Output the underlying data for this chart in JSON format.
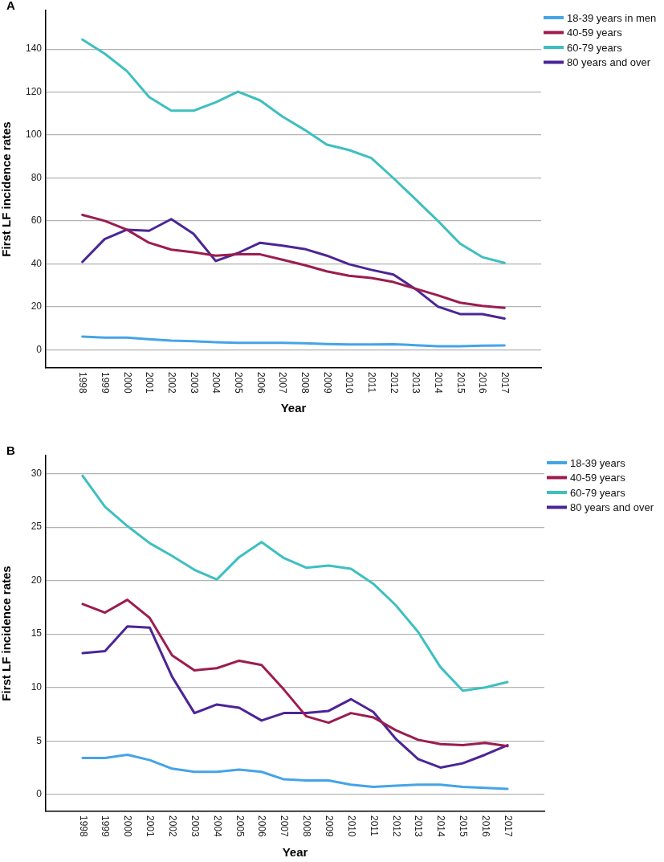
{
  "chart_data": [
    {
      "type": "line",
      "title": "A",
      "xlabel": "Year",
      "ylabel": "First LF incidence rates",
      "legend": "top right",
      "grid": "y",
      "x": [
        1998,
        1999,
        2000,
        2001,
        2002,
        2003,
        2004,
        2005,
        2006,
        2007,
        2008,
        2009,
        2010,
        2011,
        2012,
        2013,
        2014,
        2015,
        2016,
        2017
      ],
      "xlim": [
        1996.35,
        2018.65
      ],
      "xticks": [
        1998,
        1999,
        2000,
        2001,
        2002,
        2003,
        2004,
        2005,
        2006,
        2007,
        2008,
        2009,
        2010,
        2011,
        2012,
        2013,
        2014,
        2015,
        2016,
        2017
      ],
      "ylim": [
        -8.5,
        158
      ],
      "yticks": [
        0,
        20,
        40,
        60,
        80,
        100,
        120,
        140
      ],
      "series": [
        {
          "name": "18-39 years in men",
          "color": "#45a4e6",
          "values": [
            6.1,
            5.6,
            5.6,
            4.9,
            4.2,
            3.9,
            3.5,
            3.2,
            3.2,
            3.2,
            3.0,
            2.6,
            2.4,
            2.4,
            2.5,
            2.1,
            1.6,
            1.6,
            1.9,
            2.0
          ]
        },
        {
          "name": "40-59 years",
          "color": "#9c1c4f",
          "values": [
            62.8,
            60,
            55.9,
            49.8,
            46.6,
            45.4,
            43.8,
            44.4,
            44.4,
            41.9,
            39.4,
            36.5,
            34.4,
            33.4,
            31.5,
            28.4,
            25.3,
            21.9,
            20.4,
            19.5
          ]
        },
        {
          "name": "60-79 years",
          "color": "#3ebfc0",
          "values": [
            144.4,
            137.9,
            129.8,
            117.7,
            111.3,
            111.3,
            115.2,
            120.2,
            116.1,
            108.6,
            102.4,
            95.5,
            93.0,
            89.3,
            79.9,
            70.0,
            60.0,
            49.4,
            43.1,
            40.4
          ]
        },
        {
          "name": "80 years and over",
          "color": "#4b2596",
          "values": [
            40.9,
            51.5,
            55.9,
            55.4,
            60.8,
            54.0,
            41.3,
            45.0,
            49.8,
            48.5,
            46.9,
            43.8,
            39.8,
            37.2,
            35.0,
            28.2,
            20.1,
            16.6,
            16.6,
            14.5
          ]
        }
      ]
    },
    {
      "type": "line",
      "title": "B",
      "xlabel": "Year",
      "ylabel": "First LF incidence rates",
      "legend": "top right",
      "grid": "y",
      "x": [
        1998,
        1999,
        2000,
        2001,
        2002,
        2003,
        2004,
        2005,
        2006,
        2007,
        2008,
        2009,
        2010,
        2011,
        2012,
        2013,
        2014,
        2015,
        2016,
        2017
      ],
      "xlim": [
        1996.35,
        2018.65
      ],
      "xticks": [
        1998,
        1999,
        2000,
        2001,
        2002,
        2003,
        2004,
        2005,
        2006,
        2007,
        2008,
        2009,
        2010,
        2011,
        2012,
        2013,
        2014,
        2015,
        2016,
        2017
      ],
      "ylim": [
        -1.6,
        31.7
      ],
      "yticks": [
        0,
        5,
        10,
        15,
        20,
        25,
        30
      ],
      "series": [
        {
          "name": "18-39 years",
          "color": "#45a4e6",
          "values": [
            3.4,
            3.4,
            3.7,
            3.2,
            2.4,
            2.1,
            2.1,
            2.3,
            2.1,
            1.4,
            1.3,
            1.3,
            0.9,
            0.7,
            0.8,
            0.9,
            0.9,
            0.7,
            0.6,
            0.5
          ]
        },
        {
          "name": "40-59 years",
          "color": "#9c1c4f",
          "values": [
            17.8,
            17.0,
            18.2,
            16.5,
            13.0,
            11.6,
            11.8,
            12.5,
            12.1,
            9.8,
            7.3,
            6.7,
            7.6,
            7.2,
            6.0,
            5.1,
            4.7,
            4.6,
            4.8,
            4.5
          ]
        },
        {
          "name": "60-79 years",
          "color": "#3ebfc0",
          "values": [
            29.8,
            26.9,
            25.1,
            23.5,
            22.3,
            21.0,
            20.1,
            22.2,
            23.6,
            22.1,
            21.2,
            21.4,
            21.1,
            19.7,
            17.7,
            15.2,
            11.9,
            9.7,
            10.0,
            10.5
          ]
        },
        {
          "name": "80 years and over",
          "color": "#4b2596",
          "values": [
            13.2,
            13.4,
            15.7,
            15.6,
            11.0,
            7.6,
            8.4,
            8.1,
            6.9,
            7.6,
            7.6,
            7.8,
            8.9,
            7.7,
            5.2,
            3.3,
            2.5,
            2.9,
            3.7,
            4.6
          ]
        }
      ]
    }
  ]
}
